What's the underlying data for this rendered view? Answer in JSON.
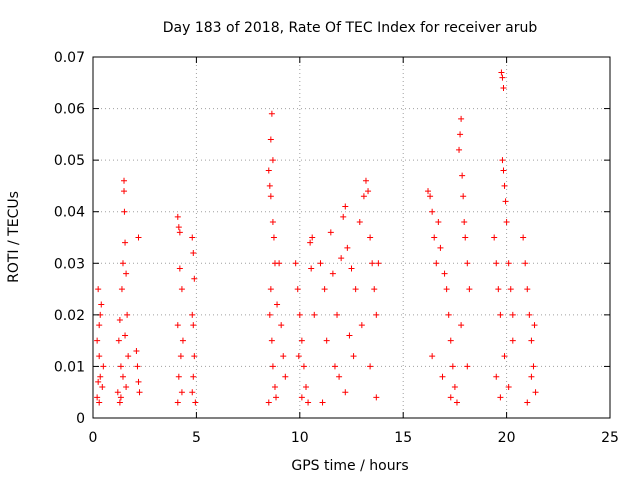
{
  "chart_data": {
    "type": "scatter",
    "title": "Day 183 of 2018, Rate Of TEC Index for receiver arub",
    "xlabel": "GPS time / hours",
    "ylabel": "ROTI / TECUs",
    "xlim": [
      0,
      25
    ],
    "ylim": [
      0,
      0.07
    ],
    "x_ticks": [
      0,
      5,
      10,
      15,
      20,
      25
    ],
    "y_ticks": [
      0,
      0.01,
      0.02,
      0.03,
      0.04,
      0.05,
      0.06,
      0.07
    ],
    "x_tick_labels": [
      "0",
      "5",
      "10",
      "15",
      "20",
      "25"
    ],
    "y_tick_labels": [
      "0",
      "0.01",
      "0.02",
      "0.03",
      "0.04",
      "0.05",
      "0.06",
      "0.07"
    ],
    "grid": true,
    "marker": "+",
    "color": "#ff0000",
    "series": [
      {
        "points": [
          [
            0.2,
            0.004
          ],
          [
            0.25,
            0.025
          ],
          [
            0.3,
            0.012
          ],
          [
            0.35,
            0.008
          ],
          [
            0.3,
            0.018
          ],
          [
            0.4,
            0.022
          ],
          [
            0.2,
            0.015
          ],
          [
            0.45,
            0.006
          ],
          [
            0.5,
            0.01
          ],
          [
            0.3,
            0.003
          ],
          [
            0.35,
            0.02
          ],
          [
            0.25,
            0.007
          ],
          [
            1.2,
            0.005
          ],
          [
            1.25,
            0.015
          ],
          [
            1.3,
            0.019
          ],
          [
            1.35,
            0.01
          ],
          [
            1.4,
            0.025
          ],
          [
            1.45,
            0.03
          ],
          [
            1.5,
            0.046
          ],
          [
            1.5,
            0.044
          ],
          [
            1.52,
            0.04
          ],
          [
            1.55,
            0.034
          ],
          [
            1.6,
            0.028
          ],
          [
            1.65,
            0.02
          ],
          [
            1.7,
            0.012
          ],
          [
            1.35,
            0.004
          ],
          [
            1.45,
            0.008
          ],
          [
            1.55,
            0.016
          ],
          [
            1.6,
            0.006
          ],
          [
            1.3,
            0.003
          ],
          [
            2.2,
            0.035
          ],
          [
            2.1,
            0.013
          ],
          [
            2.15,
            0.01
          ],
          [
            2.2,
            0.007
          ],
          [
            2.25,
            0.005
          ],
          [
            4.1,
            0.039
          ],
          [
            4.15,
            0.037
          ],
          [
            4.2,
            0.029
          ],
          [
            4.2,
            0.036
          ],
          [
            4.3,
            0.025
          ],
          [
            4.1,
            0.018
          ],
          [
            4.25,
            0.012
          ],
          [
            4.15,
            0.008
          ],
          [
            4.3,
            0.005
          ],
          [
            4.1,
            0.003
          ],
          [
            4.35,
            0.015
          ],
          [
            4.8,
            0.035
          ],
          [
            4.85,
            0.032
          ],
          [
            4.9,
            0.027
          ],
          [
            4.8,
            0.02
          ],
          [
            4.85,
            0.018
          ],
          [
            4.9,
            0.012
          ],
          [
            4.85,
            0.008
          ],
          [
            4.8,
            0.005
          ],
          [
            4.95,
            0.003
          ],
          [
            8.5,
            0.048
          ],
          [
            8.55,
            0.045
          ],
          [
            8.6,
            0.043
          ],
          [
            8.65,
            0.059
          ],
          [
            8.6,
            0.054
          ],
          [
            8.7,
            0.05
          ],
          [
            8.7,
            0.038
          ],
          [
            8.75,
            0.035
          ],
          [
            8.8,
            0.03
          ],
          [
            8.6,
            0.025
          ],
          [
            8.55,
            0.02
          ],
          [
            8.65,
            0.015
          ],
          [
            8.7,
            0.01
          ],
          [
            8.8,
            0.006
          ],
          [
            8.85,
            0.004
          ],
          [
            8.5,
            0.003
          ],
          [
            8.9,
            0.022
          ],
          [
            9.0,
            0.03
          ],
          [
            9.1,
            0.018
          ],
          [
            9.2,
            0.012
          ],
          [
            9.3,
            0.008
          ],
          [
            9.8,
            0.03
          ],
          [
            9.9,
            0.025
          ],
          [
            10.0,
            0.02
          ],
          [
            10.1,
            0.015
          ],
          [
            10.2,
            0.01
          ],
          [
            10.3,
            0.006
          ],
          [
            10.4,
            0.003
          ],
          [
            10.5,
            0.034
          ],
          [
            10.55,
            0.029
          ],
          [
            10.6,
            0.035
          ],
          [
            10.7,
            0.02
          ],
          [
            10.1,
            0.004
          ],
          [
            9.95,
            0.012
          ],
          [
            11.0,
            0.03
          ],
          [
            11.2,
            0.025
          ],
          [
            11.5,
            0.036
          ],
          [
            11.6,
            0.028
          ],
          [
            11.8,
            0.02
          ],
          [
            12.0,
            0.031
          ],
          [
            12.1,
            0.039
          ],
          [
            12.2,
            0.041
          ],
          [
            12.3,
            0.033
          ],
          [
            12.5,
            0.029
          ],
          [
            12.7,
            0.025
          ],
          [
            12.9,
            0.038
          ],
          [
            13.1,
            0.043
          ],
          [
            13.2,
            0.046
          ],
          [
            13.3,
            0.044
          ],
          [
            13.4,
            0.035
          ],
          [
            13.5,
            0.03
          ],
          [
            13.6,
            0.025
          ],
          [
            13.7,
            0.02
          ],
          [
            13.8,
            0.03
          ],
          [
            11.3,
            0.015
          ],
          [
            11.7,
            0.01
          ],
          [
            12.2,
            0.005
          ],
          [
            12.6,
            0.012
          ],
          [
            13.0,
            0.018
          ],
          [
            13.4,
            0.01
          ],
          [
            13.7,
            0.004
          ],
          [
            11.1,
            0.003
          ],
          [
            11.9,
            0.008
          ],
          [
            12.4,
            0.016
          ],
          [
            16.2,
            0.044
          ],
          [
            16.3,
            0.043
          ],
          [
            16.4,
            0.04
          ],
          [
            16.5,
            0.035
          ],
          [
            16.6,
            0.03
          ],
          [
            16.7,
            0.038
          ],
          [
            16.8,
            0.033
          ],
          [
            17.0,
            0.028
          ],
          [
            17.1,
            0.025
          ],
          [
            17.2,
            0.02
          ],
          [
            17.3,
            0.015
          ],
          [
            17.4,
            0.01
          ],
          [
            17.5,
            0.006
          ],
          [
            17.6,
            0.003
          ],
          [
            17.7,
            0.052
          ],
          [
            17.75,
            0.055
          ],
          [
            17.8,
            0.058
          ],
          [
            17.85,
            0.047
          ],
          [
            17.9,
            0.043
          ],
          [
            17.95,
            0.038
          ],
          [
            18.0,
            0.035
          ],
          [
            18.1,
            0.03
          ],
          [
            18.2,
            0.025
          ],
          [
            16.4,
            0.012
          ],
          [
            16.9,
            0.008
          ],
          [
            17.3,
            0.004
          ],
          [
            17.8,
            0.018
          ],
          [
            18.1,
            0.01
          ],
          [
            19.4,
            0.035
          ],
          [
            19.5,
            0.03
          ],
          [
            19.6,
            0.025
          ],
          [
            19.7,
            0.02
          ],
          [
            19.75,
            0.067
          ],
          [
            19.8,
            0.066
          ],
          [
            19.85,
            0.064
          ],
          [
            19.8,
            0.05
          ],
          [
            19.85,
            0.048
          ],
          [
            19.9,
            0.045
          ],
          [
            19.95,
            0.042
          ],
          [
            20.0,
            0.038
          ],
          [
            20.1,
            0.03
          ],
          [
            20.2,
            0.025
          ],
          [
            20.3,
            0.02
          ],
          [
            19.5,
            0.008
          ],
          [
            19.7,
            0.004
          ],
          [
            19.9,
            0.012
          ],
          [
            20.1,
            0.006
          ],
          [
            20.3,
            0.015
          ],
          [
            20.8,
            0.035
          ],
          [
            20.9,
            0.03
          ],
          [
            21.0,
            0.025
          ],
          [
            21.1,
            0.02
          ],
          [
            21.2,
            0.015
          ],
          [
            21.3,
            0.01
          ],
          [
            21.4,
            0.005
          ],
          [
            21.0,
            0.003
          ],
          [
            21.2,
            0.008
          ],
          [
            21.35,
            0.018
          ]
        ]
      }
    ]
  }
}
